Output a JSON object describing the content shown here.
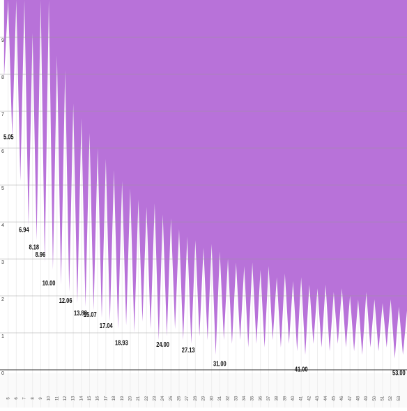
{
  "chart_data": {
    "type": "area",
    "x": [
      4.5,
      5,
      5.5,
      6,
      6.5,
      7,
      7.5,
      8,
      8.5,
      9,
      9.5,
      10,
      10.5,
      11,
      11.5,
      12,
      12.5,
      13,
      13.5,
      14,
      14.5,
      15,
      15.5,
      16,
      16.5,
      17,
      17.5,
      18,
      18.5,
      19,
      19.5,
      20,
      20.5,
      21,
      21.5,
      22,
      22.5,
      23,
      23.5,
      24,
      24.5,
      25,
      25.5,
      26,
      26.5,
      27,
      27.5,
      28,
      28.5,
      29,
      29.5,
      30,
      30.5,
      31,
      31.5,
      32,
      32.5,
      33,
      33.5,
      34,
      34.5,
      35,
      35.5,
      36,
      36.5,
      37,
      37.5,
      38,
      38.5,
      39,
      39.5,
      40,
      40.5,
      41,
      41.5,
      42,
      42.5,
      43,
      43.5,
      44,
      44.5,
      45,
      45.5,
      46,
      46.5,
      47,
      47.5,
      48,
      48.5,
      49,
      49.5,
      50,
      50.5,
      51,
      51.5,
      52,
      52.5,
      53,
      53.5,
      54
    ],
    "series": [
      {
        "color": "#b872d9",
        "values": [
          8.0,
          10.1,
          6.4,
          10.1,
          5.2,
          10.1,
          4.0,
          9.2,
          3.6,
          10.1,
          3.0,
          10.1,
          2.8,
          8.6,
          2.4,
          8.2,
          2.2,
          7.3,
          1.9,
          6.9,
          1.8,
          6.5,
          1.7,
          6.1,
          1.5,
          5.8,
          1.4,
          5.5,
          1.2,
          5.2,
          1.3,
          5.0,
          1.1,
          4.7,
          1.4,
          4.5,
          1.2,
          4.6,
          0.9,
          4.3,
          1.0,
          4.2,
          1.2,
          3.9,
          0.9,
          3.7,
          0.8,
          3.6,
          1.0,
          3.4,
          0.9,
          3.5,
          0.5,
          3.3,
          0.9,
          3.1,
          0.8,
          3.0,
          0.9,
          2.9,
          0.7,
          3.0,
          0.8,
          2.8,
          0.7,
          2.9,
          0.9,
          2.6,
          0.7,
          2.7,
          0.8,
          2.5,
          0.6,
          2.6,
          0.5,
          2.4,
          0.8,
          2.3,
          0.7,
          2.4,
          0.6,
          2.2,
          0.8,
          2.3,
          0.7,
          2.1,
          0.6,
          2.0,
          0.5,
          2.2,
          0.7,
          2.0,
          0.6,
          1.9,
          0.7,
          2.0,
          0.4,
          1.8,
          0.5,
          1.7
        ]
      }
    ],
    "annotations": [
      {
        "x": 5.05,
        "y": 6.38,
        "label": "5.05"
      },
      {
        "x": 6.94,
        "y": 3.87,
        "label": "6.94"
      },
      {
        "x": 8.18,
        "y": 3.4,
        "label": "8.18"
      },
      {
        "x": 8.96,
        "y": 3.2,
        "label": "8.96"
      },
      {
        "x": 10,
        "y": 2.43,
        "label": "10.00"
      },
      {
        "x": 12.06,
        "y": 1.96,
        "label": "12.06"
      },
      {
        "x": 13.88,
        "y": 1.62,
        "label": "13.88"
      },
      {
        "x": 15.07,
        "y": 1.58,
        "label": "15.07"
      },
      {
        "x": 17.04,
        "y": 1.28,
        "label": "17.04"
      },
      {
        "x": 18.93,
        "y": 0.81,
        "label": "18.93"
      },
      {
        "x": 24,
        "y": 0.77,
        "label": "24.00"
      },
      {
        "x": 27.13,
        "y": 0.62,
        "label": "27.13"
      },
      {
        "x": 31,
        "y": 0.25,
        "label": "31.00"
      },
      {
        "x": 41,
        "y": 0.1,
        "label": "41.00"
      },
      {
        "x": 53,
        "y": 0,
        "label": "53.00"
      }
    ],
    "xlim": [
      4,
      54
    ],
    "ylim": [
      0,
      10.1
    ],
    "xticks": [
      5,
      6,
      7,
      8,
      9,
      10,
      11,
      12,
      13,
      14,
      15,
      16,
      17,
      18,
      19,
      20,
      21,
      22,
      23,
      24,
      25,
      26,
      27,
      28,
      29,
      30,
      31,
      32,
      33,
      34,
      35,
      36,
      37,
      38,
      39,
      40,
      41,
      42,
      43,
      44,
      45,
      46,
      47,
      48,
      49,
      50,
      51,
      52,
      53
    ],
    "yticks": [
      0,
      1,
      2,
      3,
      4,
      5,
      6,
      7,
      8,
      9
    ],
    "grid": true
  }
}
